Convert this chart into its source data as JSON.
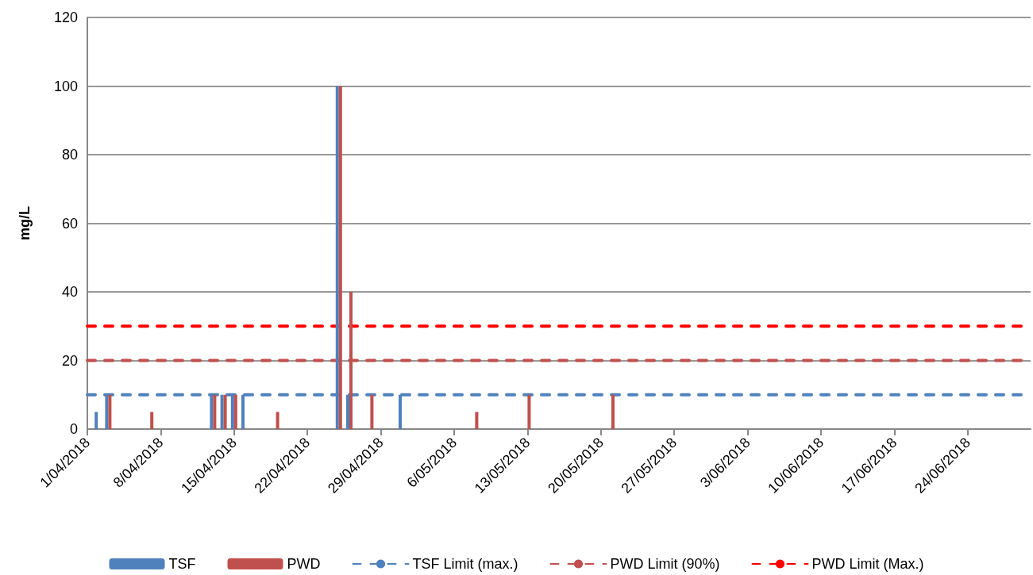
{
  "chart_data": {
    "type": "bar",
    "ylabel": "mg/L",
    "series": [
      {
        "name": "TSF",
        "color": "#4f81bd",
        "x": [
          "2018-04-02",
          "2018-04-03",
          "2018-04-13",
          "2018-04-14",
          "2018-04-15",
          "2018-04-16",
          "2018-04-25",
          "2018-04-26",
          "2018-05-01"
        ],
        "values": [
          5,
          10,
          10,
          10,
          10,
          10,
          100,
          10,
          10
        ]
      },
      {
        "name": "PWD",
        "color": "#c0504d",
        "x": [
          "2018-04-03",
          "2018-04-07",
          "2018-04-13",
          "2018-04-14",
          "2018-04-15",
          "2018-04-19",
          "2018-04-25",
          "2018-04-26",
          "2018-04-28",
          "2018-05-08",
          "2018-05-13",
          "2018-05-21"
        ],
        "values": [
          10,
          5,
          10,
          10,
          10,
          5,
          100,
          40,
          10,
          5,
          10,
          10
        ]
      }
    ],
    "ref_lines": [
      {
        "axis": "y",
        "value": 10,
        "label": "TSF Limit (max.)",
        "color": "#4f81bd",
        "line_style": "dashed"
      },
      {
        "axis": "y",
        "value": 20,
        "label": "PWD Limit (90%)",
        "color": "#c0504d",
        "line_style": "dashed"
      },
      {
        "axis": "y",
        "value": 30,
        "label": "PWD Limit (Max.)",
        "color": "#ff0000",
        "line_style": "dashed"
      }
    ],
    "xlim": [
      "2018-04-01",
      "2018-06-30"
    ],
    "xticks": [
      {
        "value": "2018-04-01",
        "label": "1/04/2018"
      },
      {
        "value": "2018-04-08",
        "label": "8/04/2018"
      },
      {
        "value": "2018-04-15",
        "label": "15/04/2018"
      },
      {
        "value": "2018-04-22",
        "label": "22/04/2018"
      },
      {
        "value": "2018-04-29",
        "label": "29/04/2018"
      },
      {
        "value": "2018-05-06",
        "label": "6/05/2018"
      },
      {
        "value": "2018-05-13",
        "label": "13/05/2018"
      },
      {
        "value": "2018-05-20",
        "label": "20/05/2018"
      },
      {
        "value": "2018-05-27",
        "label": "27/05/2018"
      },
      {
        "value": "2018-06-03",
        "label": "3/06/2018"
      },
      {
        "value": "2018-06-10",
        "label": "10/06/2018"
      },
      {
        "value": "2018-06-17",
        "label": "17/06/2018"
      },
      {
        "value": "2018-06-24",
        "label": "24/06/2018"
      }
    ],
    "ylim": [
      0,
      120
    ],
    "yticks": [
      0,
      20,
      40,
      60,
      80,
      100,
      120
    ],
    "grid": "y",
    "legend": "bottom"
  }
}
